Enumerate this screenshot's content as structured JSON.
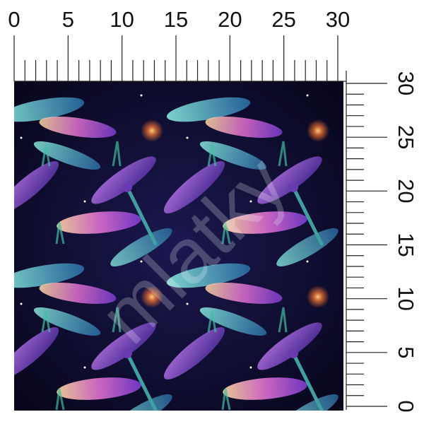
{
  "top_ruler": {
    "labels": [
      0,
      5,
      10,
      15,
      20,
      25,
      30
    ]
  },
  "right_ruler": {
    "labels": [
      30,
      25,
      20,
      15,
      10,
      5,
      0
    ]
  },
  "watermark": "mlatky"
}
